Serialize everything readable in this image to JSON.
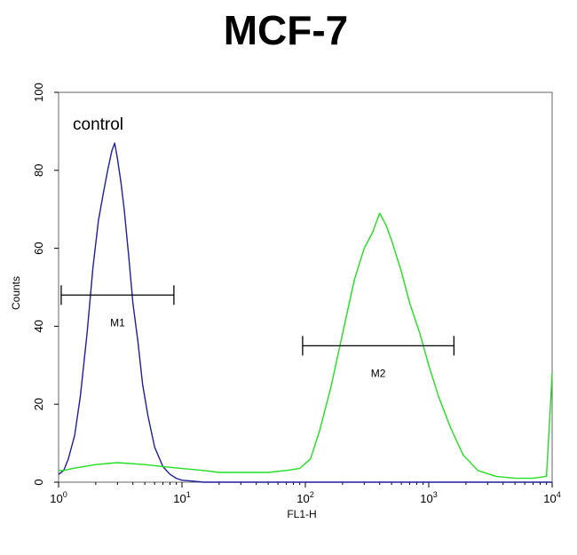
{
  "chart_data": {
    "type": "line",
    "title": "MCF-7",
    "xlabel": "FL1-H",
    "ylabel": "Counts",
    "x_scale": "log",
    "xlim": [
      1,
      10000
    ],
    "ylim": [
      0,
      100
    ],
    "x_ticks": [
      {
        "base": "10",
        "exp": "0"
      },
      {
        "base": "10",
        "exp": "1"
      },
      {
        "base": "10",
        "exp": "2"
      },
      {
        "base": "10",
        "exp": "3"
      },
      {
        "base": "10",
        "exp": "4"
      }
    ],
    "y_ticks": [
      "0",
      "20",
      "40",
      "60",
      "80",
      "100"
    ],
    "annotation": "control",
    "series": [
      {
        "color": "#1f1f9a",
        "x": [
          1.0,
          1.1,
          1.2,
          1.35,
          1.5,
          1.7,
          1.9,
          2.1,
          2.3,
          2.5,
          2.7,
          2.85,
          3.0,
          3.2,
          3.4,
          3.7,
          4.0,
          4.4,
          4.8,
          5.3,
          6.0,
          7.0,
          8.0,
          9.0,
          10.0,
          12.0,
          15.0,
          20.0,
          30.0,
          50.0,
          100.0,
          1000.0,
          10000.0
        ],
        "y": [
          2,
          3,
          6,
          12,
          22,
          38,
          55,
          67,
          74,
          80,
          85,
          87,
          83,
          77,
          70,
          58,
          46,
          36,
          25,
          17,
          9,
          4,
          2,
          1,
          0.5,
          0.3,
          0,
          0,
          0,
          0,
          0,
          0,
          0
        ]
      },
      {
        "color": "#22dd22",
        "x": [
          1.0,
          1.1,
          1.3,
          1.6,
          2.0,
          3.0,
          5.0,
          7.0,
          10.0,
          15.0,
          20.0,
          30.0,
          50.0,
          70.0,
          90.0,
          110.0,
          130.0,
          160.0,
          200.0,
          250.0,
          300.0,
          350.0,
          400.0,
          450.0,
          500.0,
          600.0,
          700.0,
          850.0,
          1000.0,
          1200.0,
          1500.0,
          1900.0,
          2500.0,
          3500.0,
          5000.0,
          7000.0,
          9000.0,
          9700.0,
          10000.0
        ],
        "y": [
          3,
          3,
          3.5,
          4,
          4.5,
          5,
          4.5,
          4,
          3.5,
          3,
          2.5,
          2.5,
          2.5,
          3,
          3.5,
          6,
          13,
          24,
          38,
          52,
          60,
          64,
          69,
          66,
          62,
          54,
          46,
          38,
          30,
          22,
          14,
          7,
          3,
          1.5,
          1,
          1,
          1.5,
          20,
          28
        ]
      }
    ],
    "markers": [
      {
        "label": "M1",
        "x_start": 1.05,
        "x_end": 8.6,
        "y": 48
      },
      {
        "label": "M2",
        "x_start": 95,
        "x_end": 1600,
        "y": 35
      }
    ]
  }
}
